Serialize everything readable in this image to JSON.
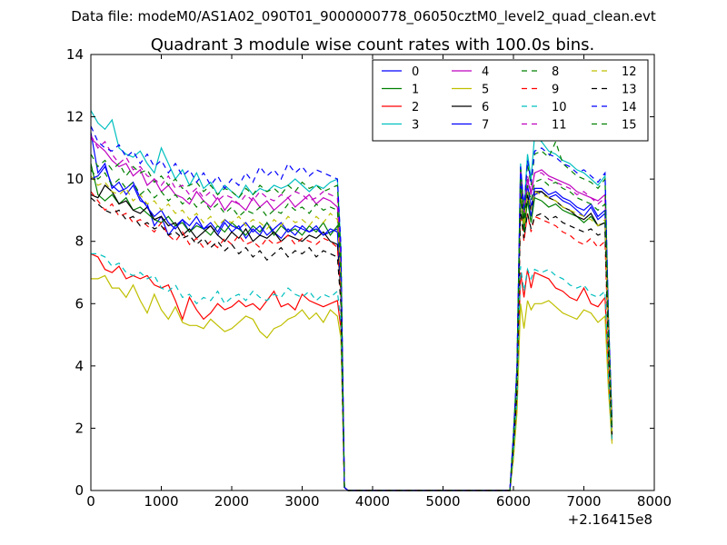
{
  "suptitle": "Data file: modeM0/AS1A02_090T01_9000000778_06050cztM0_level2_quad_clean.evt",
  "chart_data": {
    "type": "line",
    "title": "Quadrant 3 module wise count rates with 100.0s bins.",
    "xlabel": "",
    "ylabel": "",
    "x_offset_label": "+2.16415e8",
    "xlim": [
      0,
      8000
    ],
    "ylim": [
      0,
      14
    ],
    "xticks": [
      0,
      1000,
      2000,
      3000,
      4000,
      5000,
      6000,
      7000,
      8000
    ],
    "yticks": [
      0,
      2,
      4,
      6,
      8,
      10,
      12,
      14
    ],
    "grid": false,
    "legend_position": "top-right",
    "legend_columns": 4,
    "x": [
      0,
      100,
      200,
      300,
      400,
      500,
      600,
      700,
      800,
      900,
      1000,
      1100,
      1200,
      1300,
      1400,
      1500,
      1600,
      1700,
      1800,
      1900,
      2000,
      2100,
      2200,
      2300,
      2400,
      2500,
      2600,
      2700,
      2800,
      2900,
      3000,
      3100,
      3200,
      3300,
      3400,
      3500,
      3550,
      3600,
      3650,
      3700,
      3800,
      4000,
      4500,
      5000,
      5500,
      5800,
      5900,
      5950,
      6000,
      6050,
      6100,
      6150,
      6200,
      6250,
      6300,
      6400,
      6500,
      6600,
      6700,
      6800,
      6900,
      7000,
      7100,
      7200,
      7300,
      7350,
      7400
    ],
    "series": [
      {
        "name": "0",
        "color": "#0000ff",
        "style": "solid",
        "values": [
          11.5,
          10.2,
          10.5,
          9.7,
          9.9,
          9.5,
          9.8,
          9.3,
          9.2,
          8.5,
          8.8,
          8.2,
          8.5,
          8.7,
          8.3,
          8.6,
          8.4,
          8.5,
          8.2,
          8.6,
          8.3,
          8.5,
          8.1,
          8.4,
          8.2,
          8.6,
          8.3,
          8.1,
          8.4,
          8.2,
          8.5,
          8.3,
          8.4,
          8.2,
          8.3,
          8.4,
          6.5,
          0.1,
          0.0,
          0.0,
          0.0,
          0.0,
          0.0,
          0.0,
          0.0,
          0.0,
          0.0,
          0.0,
          1.5,
          3.5,
          9.8,
          8.5,
          9.5,
          8.8,
          9.5,
          9.6,
          9.4,
          9.5,
          9.3,
          9.2,
          9.0,
          8.8,
          9.1,
          8.7,
          8.9,
          5.0,
          2.0
        ]
      },
      {
        "name": "1",
        "color": "#008000",
        "style": "solid",
        "values": [
          10.5,
          9.5,
          9.3,
          9.5,
          9.2,
          9.4,
          9.0,
          9.1,
          8.9,
          8.7,
          8.6,
          8.8,
          8.5,
          8.6,
          8.3,
          8.5,
          8.4,
          8.2,
          8.5,
          8.3,
          8.6,
          8.4,
          8.2,
          8.5,
          8.3,
          8.6,
          8.2,
          8.5,
          8.3,
          8.4,
          8.2,
          8.5,
          8.3,
          8.6,
          8.2,
          8.5,
          6.8,
          0.1,
          0.0,
          0.0,
          0.0,
          0.0,
          0.0,
          0.0,
          0.0,
          0.0,
          0.0,
          0.0,
          1.6,
          3.6,
          9.5,
          8.3,
          9.3,
          8.6,
          9.4,
          9.3,
          9.1,
          9.2,
          9.0,
          8.9,
          8.8,
          8.6,
          8.8,
          8.5,
          8.6,
          4.8,
          1.9
        ]
      },
      {
        "name": "2",
        "color": "#ff0000",
        "style": "solid",
        "values": [
          7.6,
          7.5,
          7.1,
          7.0,
          7.2,
          6.8,
          6.9,
          6.8,
          6.9,
          6.6,
          6.5,
          6.6,
          6.1,
          5.5,
          6.2,
          5.8,
          5.5,
          5.7,
          6.0,
          5.8,
          5.9,
          6.1,
          5.9,
          6.0,
          5.8,
          6.1,
          6.4,
          5.9,
          6.0,
          5.8,
          6.3,
          6.1,
          6.0,
          5.9,
          6.0,
          6.1,
          5.2,
          0.1,
          0.0,
          0.0,
          0.0,
          0.0,
          0.0,
          0.0,
          0.0,
          0.0,
          0.0,
          0.0,
          1.2,
          2.8,
          7.0,
          6.2,
          7.1,
          6.5,
          7.0,
          6.9,
          6.8,
          6.5,
          6.4,
          6.2,
          6.1,
          6.5,
          6.0,
          5.9,
          6.2,
          3.5,
          1.6
        ]
      },
      {
        "name": "3",
        "color": "#00bfbf",
        "style": "solid",
        "values": [
          12.2,
          11.8,
          11.6,
          11.9,
          11.0,
          10.8,
          10.7,
          10.9,
          10.5,
          10.2,
          11.0,
          10.5,
          10.0,
          10.3,
          9.8,
          10.2,
          9.7,
          9.9,
          9.5,
          9.8,
          9.6,
          9.4,
          9.8,
          9.5,
          9.7,
          9.6,
          9.8,
          9.7,
          9.8,
          10.0,
          9.8,
          9.6,
          9.8,
          9.7,
          9.9,
          10.0,
          7.8,
          0.1,
          0.0,
          0.0,
          0.0,
          0.0,
          0.0,
          0.0,
          0.0,
          0.0,
          0.0,
          0.0,
          1.8,
          4.0,
          10.5,
          9.0,
          10.8,
          10.0,
          11.4,
          11.2,
          10.9,
          10.8,
          10.6,
          10.5,
          10.3,
          10.2,
          10.0,
          9.8,
          10.1,
          5.5,
          2.2
        ]
      },
      {
        "name": "4",
        "color": "#bf00bf",
        "style": "solid",
        "values": [
          11.3,
          11.1,
          10.9,
          10.6,
          10.4,
          10.5,
          10.1,
          10.3,
          9.8,
          10.0,
          9.6,
          9.8,
          9.5,
          9.4,
          9.2,
          9.6,
          9.3,
          9.1,
          9.4,
          9.0,
          9.3,
          9.2,
          9.0,
          9.4,
          9.1,
          9.3,
          9.0,
          9.2,
          9.4,
          9.1,
          9.3,
          9.5,
          9.2,
          9.4,
          9.3,
          9.1,
          7.2,
          0.1,
          0.0,
          0.0,
          0.0,
          0.0,
          0.0,
          0.0,
          0.0,
          0.0,
          0.0,
          0.0,
          1.7,
          3.8,
          10.2,
          8.8,
          10.0,
          9.5,
          10.2,
          10.3,
          10.1,
          10.0,
          9.9,
          9.8,
          9.6,
          9.5,
          9.4,
          9.3,
          9.5,
          5.2,
          2.1
        ]
      },
      {
        "name": "5",
        "color": "#bfbf00",
        "style": "solid",
        "values": [
          6.8,
          6.8,
          6.9,
          6.5,
          6.5,
          6.2,
          6.6,
          6.1,
          5.7,
          6.3,
          5.8,
          5.5,
          5.9,
          5.4,
          5.3,
          5.3,
          5.2,
          5.5,
          5.3,
          5.1,
          5.2,
          5.4,
          5.6,
          5.5,
          5.1,
          4.9,
          5.2,
          5.3,
          5.5,
          5.6,
          5.8,
          5.5,
          5.7,
          5.4,
          5.8,
          5.6,
          4.9,
          0.1,
          0.0,
          0.0,
          0.0,
          0.0,
          0.0,
          0.0,
          0.0,
          0.0,
          0.0,
          0.0,
          1.0,
          2.5,
          6.0,
          5.2,
          6.1,
          5.8,
          6.0,
          6.0,
          6.1,
          5.9,
          5.7,
          5.6,
          5.5,
          5.8,
          5.7,
          5.4,
          5.6,
          3.2,
          1.5
        ]
      },
      {
        "name": "6",
        "color": "#000000",
        "style": "solid",
        "values": [
          9.5,
          9.4,
          9.8,
          9.6,
          9.2,
          9.3,
          9.0,
          8.9,
          9.1,
          8.7,
          8.8,
          8.5,
          8.6,
          8.2,
          8.4,
          8.1,
          8.3,
          8.5,
          8.2,
          8.0,
          8.3,
          8.1,
          8.4,
          8.0,
          8.2,
          8.1,
          8.3,
          8.0,
          8.2,
          8.1,
          8.0,
          8.2,
          8.1,
          8.3,
          8.0,
          7.9,
          6.4,
          0.1,
          0.0,
          0.0,
          0.0,
          0.0,
          0.0,
          0.0,
          0.0,
          0.0,
          0.0,
          0.0,
          1.5,
          3.4,
          9.6,
          8.6,
          9.5,
          9.0,
          9.6,
          9.6,
          9.4,
          9.3,
          9.1,
          9.0,
          8.8,
          8.7,
          8.9,
          8.5,
          8.6,
          4.6,
          1.8
        ]
      },
      {
        "name": "7",
        "color": "#0000ff",
        "style": "solid",
        "values": [
          10.0,
          10.1,
          10.4,
          9.8,
          9.6,
          9.7,
          9.9,
          9.4,
          9.1,
          8.8,
          9.0,
          8.6,
          8.4,
          8.7,
          8.5,
          8.8,
          8.4,
          8.6,
          8.3,
          8.7,
          8.5,
          8.4,
          8.6,
          8.3,
          8.5,
          8.2,
          8.4,
          8.6,
          8.3,
          8.5,
          8.4,
          8.3,
          8.5,
          8.2,
          8.4,
          8.3,
          6.6,
          0.1,
          0.0,
          0.0,
          0.0,
          0.0,
          0.0,
          0.0,
          0.0,
          0.0,
          0.0,
          0.0,
          1.6,
          3.6,
          10.0,
          8.8,
          9.8,
          9.1,
          9.7,
          9.7,
          9.5,
          9.6,
          9.4,
          9.3,
          9.1,
          9.0,
          9.2,
          8.8,
          9.0,
          5.0,
          2.0
        ]
      },
      {
        "name": "8",
        "color": "#008000",
        "style": "dashed",
        "values": [
          10.8,
          10.4,
          10.6,
          10.3,
          10.5,
          10.1,
          10.4,
          10.2,
          10.3,
          9.9,
          10.1,
          9.8,
          10.0,
          9.7,
          9.8,
          9.9,
          9.6,
          9.8,
          9.5,
          9.7,
          9.6,
          9.4,
          9.7,
          9.5,
          9.8,
          9.6,
          9.7,
          9.5,
          9.8,
          9.6,
          9.9,
          9.7,
          9.8,
          9.6,
          9.7,
          9.8,
          7.6,
          0.1,
          0.0,
          0.0,
          0.0,
          0.0,
          0.0,
          0.0,
          0.0,
          0.0,
          0.0,
          0.0,
          1.8,
          3.9,
          10.4,
          9.0,
          10.5,
          9.8,
          10.8,
          10.9,
          10.7,
          11.2,
          10.5,
          10.3,
          10.1,
          10.0,
          9.9,
          9.7,
          10.0,
          5.4,
          2.2
        ]
      },
      {
        "name": "9",
        "color": "#ff0000",
        "style": "dashed",
        "values": [
          9.6,
          9.3,
          9.0,
          9.2,
          8.8,
          8.9,
          8.6,
          8.7,
          8.5,
          8.3,
          8.6,
          8.2,
          8.0,
          8.3,
          7.9,
          8.1,
          7.8,
          8.0,
          7.8,
          8.1,
          7.9,
          8.2,
          7.9,
          8.0,
          7.8,
          8.1,
          7.9,
          8.0,
          8.2,
          7.9,
          8.1,
          8.0,
          7.9,
          8.1,
          8.0,
          7.8,
          6.2,
          0.1,
          0.0,
          0.0,
          0.0,
          0.0,
          0.0,
          0.0,
          0.0,
          0.0,
          0.0,
          0.0,
          1.4,
          3.2,
          9.0,
          8.0,
          8.9,
          8.3,
          8.8,
          8.7,
          8.6,
          8.5,
          8.3,
          8.2,
          8.0,
          7.9,
          8.1,
          7.8,
          8.0,
          4.4,
          1.7
        ]
      },
      {
        "name": "10",
        "color": "#00bfbf",
        "style": "dashed",
        "values": [
          7.6,
          7.6,
          7.5,
          7.2,
          7.3,
          7.0,
          6.9,
          7.0,
          6.8,
          6.9,
          6.5,
          6.4,
          6.6,
          6.2,
          6.3,
          6.0,
          6.2,
          6.1,
          6.4,
          6.0,
          6.2,
          6.3,
          6.1,
          6.4,
          6.2,
          6.1,
          6.3,
          6.2,
          6.5,
          6.3,
          6.2,
          6.4,
          6.1,
          6.3,
          6.2,
          6.4,
          5.4,
          0.1,
          0.0,
          0.0,
          0.0,
          0.0,
          0.0,
          0.0,
          0.0,
          0.0,
          0.0,
          0.0,
          1.2,
          2.9,
          7.2,
          6.4,
          7.1,
          6.8,
          7.1,
          7.0,
          7.1,
          6.9,
          6.8,
          6.6,
          6.5,
          6.6,
          6.3,
          6.2,
          6.4,
          3.6,
          1.6
        ]
      },
      {
        "name": "11",
        "color": "#bf00bf",
        "style": "dashed",
        "values": [
          11.4,
          11.0,
          11.2,
          10.8,
          10.5,
          10.7,
          10.3,
          10.4,
          10.1,
          10.0,
          9.8,
          10.1,
          9.7,
          9.8,
          9.5,
          9.7,
          9.4,
          9.6,
          9.3,
          9.5,
          9.4,
          9.2,
          9.5,
          9.3,
          9.6,
          9.4,
          9.3,
          9.5,
          9.4,
          9.6,
          9.5,
          9.3,
          9.4,
          9.6,
          9.5,
          9.4,
          7.4,
          0.1,
          0.0,
          0.0,
          0.0,
          0.0,
          0.0,
          0.0,
          0.0,
          0.0,
          0.0,
          0.0,
          1.7,
          3.8,
          10.3,
          8.9,
          10.1,
          9.6,
          10.2,
          10.2,
          10.0,
          9.9,
          9.8,
          9.7,
          9.5,
          9.6,
          9.4,
          9.2,
          9.4,
          5.2,
          2.1
        ]
      },
      {
        "name": "12",
        "color": "#bfbf00",
        "style": "dashed",
        "values": [
          10.1,
          9.8,
          9.9,
          9.6,
          9.5,
          9.7,
          9.3,
          9.5,
          9.2,
          9.3,
          9.0,
          9.2,
          8.9,
          9.0,
          8.7,
          8.9,
          8.6,
          8.8,
          8.5,
          8.7,
          8.6,
          8.8,
          8.5,
          8.7,
          8.6,
          8.4,
          8.7,
          8.5,
          8.8,
          8.6,
          8.7,
          8.5,
          8.8,
          8.6,
          8.9,
          8.7,
          6.8,
          0.1,
          0.0,
          0.0,
          0.0,
          0.0,
          0.0,
          0.0,
          0.0,
          0.0,
          0.0,
          0.0,
          1.6,
          3.6,
          9.7,
          8.5,
          9.6,
          9.0,
          9.6,
          9.5,
          9.4,
          9.3,
          9.1,
          9.0,
          8.9,
          8.8,
          8.7,
          8.5,
          8.7,
          4.8,
          1.9
        ]
      },
      {
        "name": "13",
        "color": "#000000",
        "style": "dashed",
        "values": [
          9.4,
          9.2,
          9.0,
          8.9,
          9.0,
          8.7,
          8.8,
          8.5,
          8.6,
          8.4,
          8.5,
          8.2,
          8.3,
          8.1,
          8.2,
          7.9,
          8.1,
          7.8,
          8.0,
          7.7,
          7.9,
          7.6,
          7.8,
          7.5,
          7.7,
          7.4,
          7.6,
          7.8,
          7.5,
          7.7,
          7.6,
          7.8,
          7.5,
          7.7,
          7.6,
          7.5,
          6.0,
          0.1,
          0.0,
          0.0,
          0.0,
          0.0,
          0.0,
          0.0,
          0.0,
          0.0,
          0.0,
          0.0,
          1.4,
          3.2,
          9.0,
          8.1,
          8.9,
          8.4,
          8.8,
          8.9,
          8.7,
          8.8,
          8.6,
          8.5,
          8.4,
          8.3,
          8.4,
          8.2,
          8.3,
          4.4,
          1.8
        ]
      },
      {
        "name": "14",
        "color": "#0000ff",
        "style": "dashed",
        "values": [
          11.7,
          11.2,
          11.0,
          10.9,
          11.1,
          10.7,
          10.9,
          10.5,
          10.8,
          10.4,
          10.6,
          10.2,
          10.5,
          10.1,
          10.3,
          9.9,
          10.2,
          9.8,
          10.1,
          9.7,
          10.0,
          9.8,
          10.2,
          9.9,
          10.4,
          10.1,
          10.3,
          10.0,
          10.5,
          10.2,
          10.4,
          10.1,
          10.3,
          10.2,
          10.1,
          10.0,
          7.9,
          0.1,
          0.0,
          0.0,
          0.0,
          0.0,
          0.0,
          0.0,
          0.0,
          0.0,
          0.0,
          0.0,
          1.8,
          4.0,
          10.4,
          9.1,
          10.6,
          9.9,
          10.9,
          11.0,
          10.8,
          10.7,
          10.5,
          10.4,
          10.2,
          10.3,
          10.1,
          9.9,
          10.2,
          5.5,
          2.3
        ]
      },
      {
        "name": "15",
        "color": "#008000",
        "style": "dashed",
        "values": [
          10.3,
          10.0,
          10.2,
          9.8,
          10.0,
          9.7,
          9.9,
          9.5,
          9.7,
          9.4,
          9.6,
          9.3,
          9.5,
          9.2,
          9.4,
          9.1,
          9.3,
          9.0,
          9.2,
          8.9,
          9.1,
          8.8,
          9.0,
          8.9,
          9.1,
          8.8,
          9.0,
          8.9,
          9.2,
          9.0,
          9.1,
          8.9,
          9.2,
          9.0,
          9.1,
          9.0,
          7.0,
          0.1,
          0.0,
          0.0,
          0.0,
          0.0,
          0.0,
          0.0,
          0.0,
          0.0,
          0.0,
          0.0,
          1.6,
          3.7,
          9.9,
          8.7,
          9.8,
          9.3,
          9.9,
          10.0,
          9.8,
          9.9,
          9.7,
          9.6,
          9.4,
          9.3,
          9.2,
          9.0,
          9.2,
          5.0,
          2.0
        ]
      }
    ]
  }
}
